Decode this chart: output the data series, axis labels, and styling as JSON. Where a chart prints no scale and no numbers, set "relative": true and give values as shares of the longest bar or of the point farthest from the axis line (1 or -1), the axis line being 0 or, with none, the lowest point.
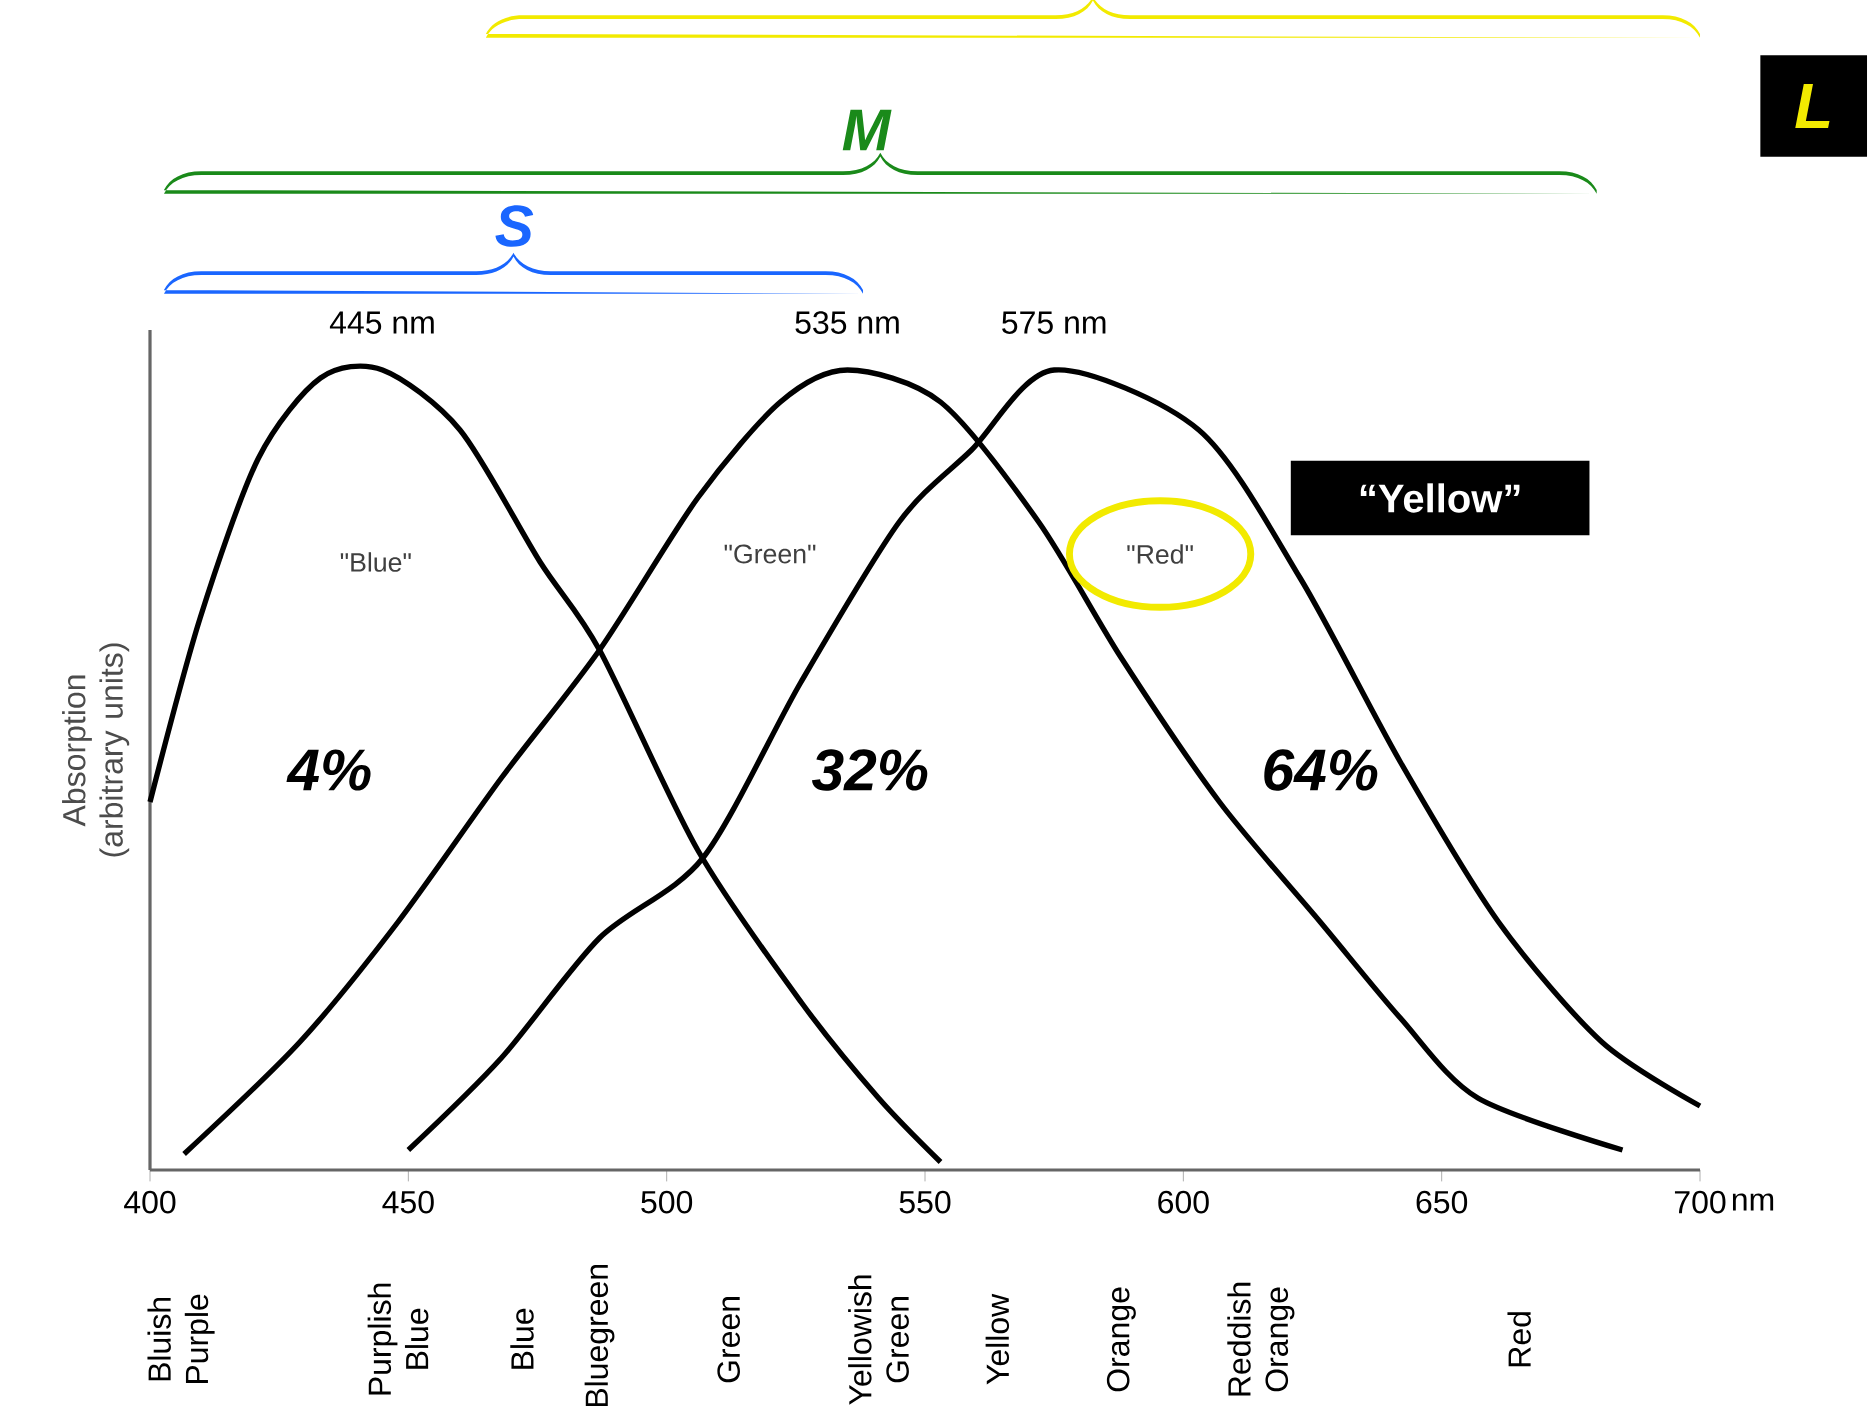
{
  "chart_data": {
    "type": "line",
    "relative": true,
    "ylabel": "Absorption (arbitrary units)",
    "xlabel": "nm",
    "xlim": [
      400,
      700
    ],
    "xticks": [
      400,
      450,
      500,
      550,
      600,
      650,
      700
    ],
    "legend": false,
    "grid": false,
    "marker": "none",
    "line_style": "solid",
    "series": [
      {
        "color": "#000000",
        "x": [
          400,
          409.7,
          421,
          433,
          445,
          460,
          475.5,
          487,
          506,
          526,
          541,
          553
        ],
        "values": [
          0.46,
          0.69,
          0.89,
          0.99,
          1,
          0.925,
          0.76,
          0.65,
          0.4,
          0.21,
          0.09,
          0.01
        ]
      },
      {
        "color": "#000000",
        "x": [
          406.6,
          429,
          448,
          468,
          487,
          506,
          522,
          535,
          553,
          572,
          588,
          607,
          626.5,
          642,
          657,
          685
        ],
        "values": [
          0.02,
          0.16,
          0.31,
          0.49,
          0.65,
          0.84,
          0.96,
          1,
          0.96,
          0.81,
          0.64,
          0.46,
          0.31,
          0.19,
          0.09,
          0.025
        ]
      },
      {
        "color": "#000000",
        "x": [
          450,
          468,
          487,
          507,
          526,
          545,
          559,
          575,
          603,
          622.6,
          642,
          661,
          681,
          700
        ],
        "values": [
          0.025,
          0.14,
          0.29,
          0.39,
          0.61,
          0.81,
          0.9,
          1,
          0.925,
          0.74,
          0.51,
          0.31,
          0.16,
          0.08
        ]
      }
    ],
    "annotations": [
      "445 nm",
      "535 nm",
      "575 nm",
      "\"Blue\"",
      "\"Green\"",
      "\"Red\"",
      "4%",
      "32%",
      "64%",
      "S",
      "M",
      "L",
      "“Yellow”",
      "Bluish Purple",
      "Purplish Blue",
      "Blue",
      "Bluegreen",
      "Green",
      "Yellowish Green",
      "Yellow",
      "Orange",
      "Reddish Orange",
      "Red"
    ]
  }
}
